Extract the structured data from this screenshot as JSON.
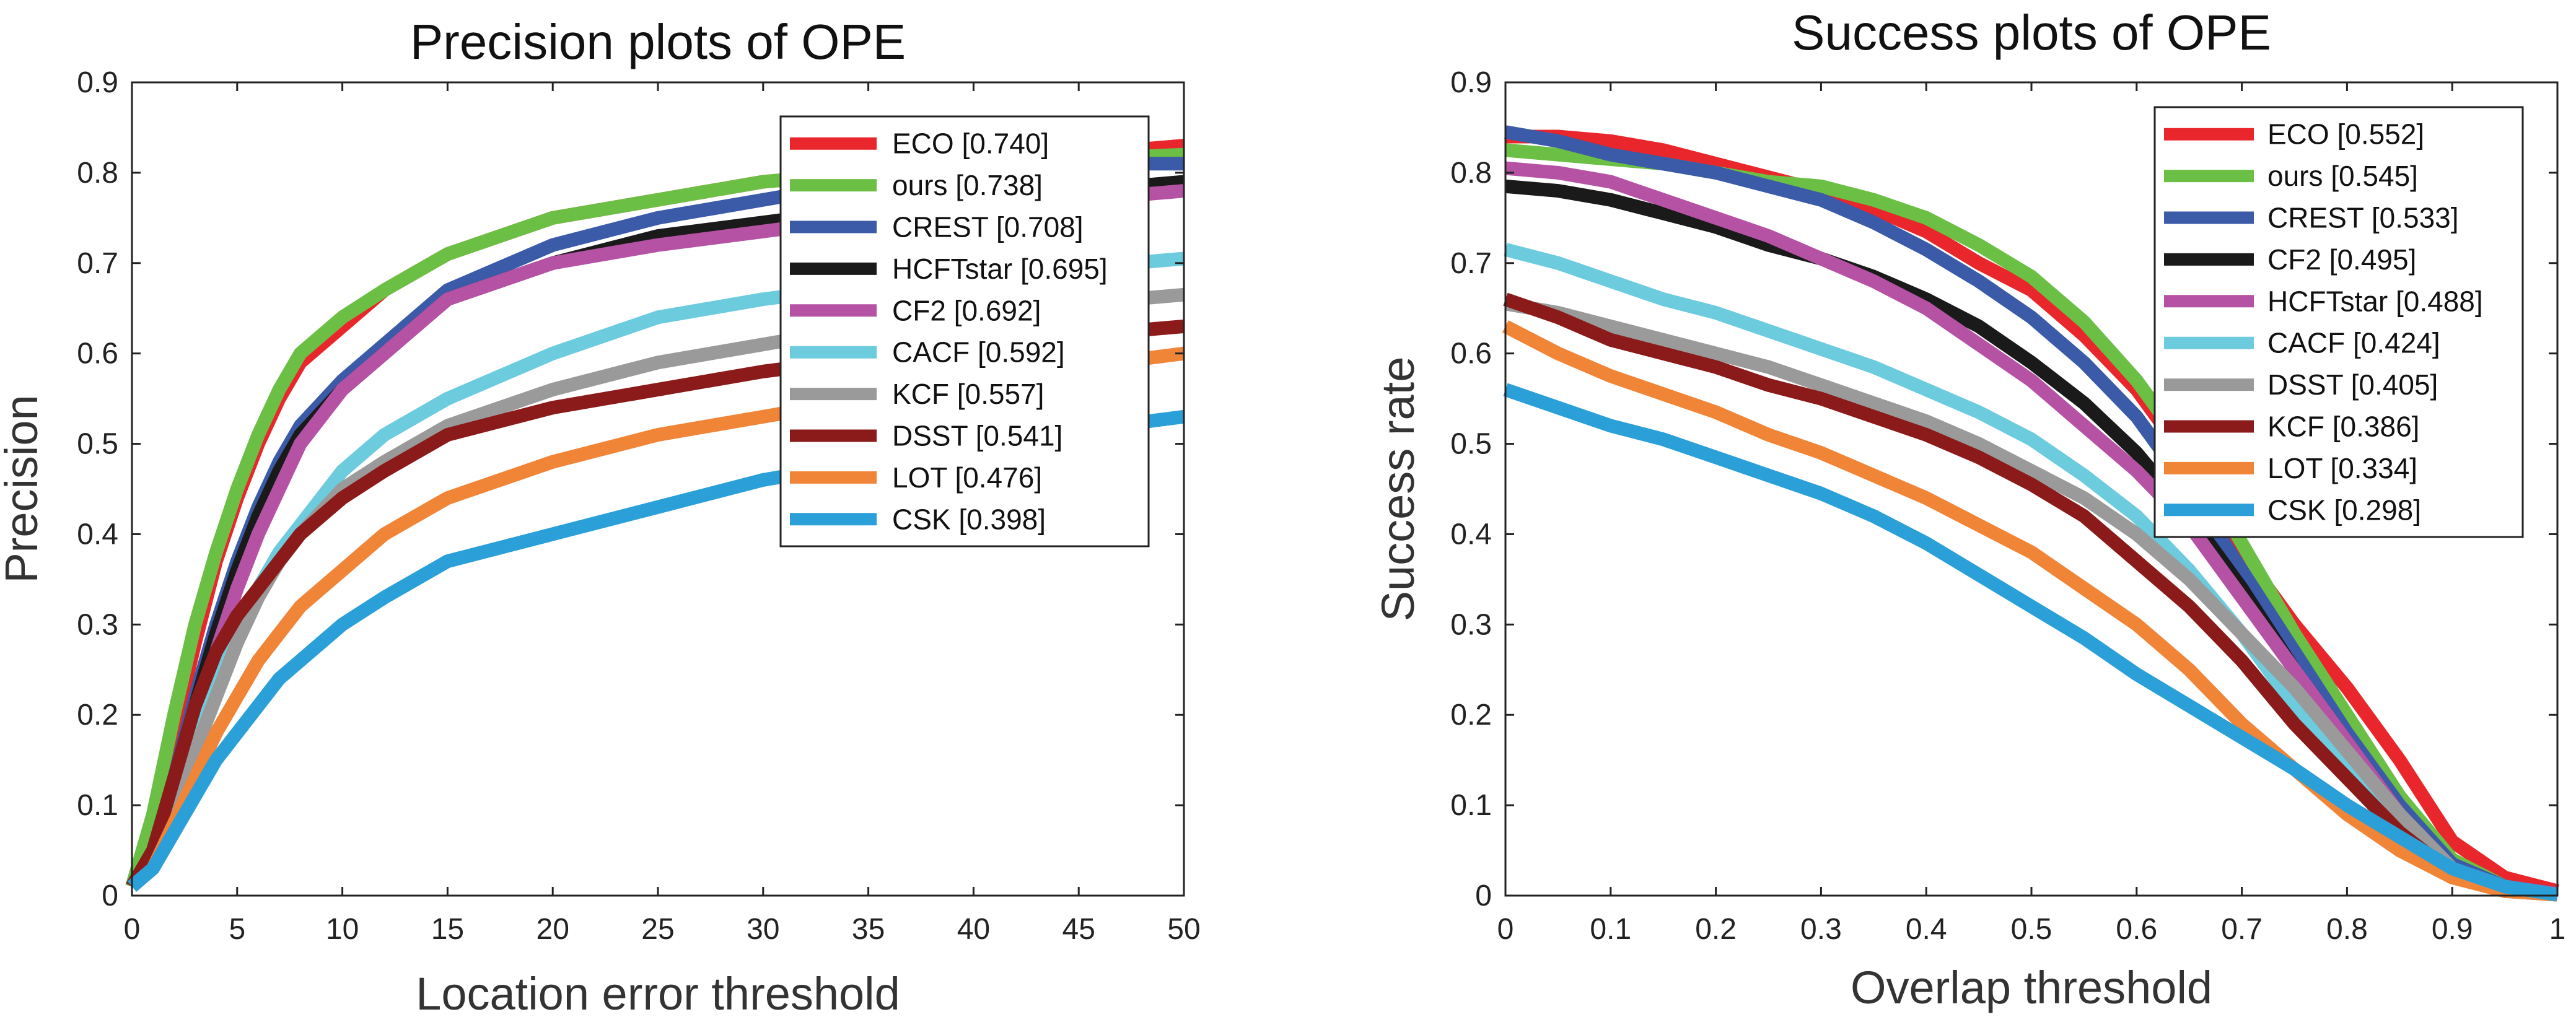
{
  "chart_data": [
    {
      "type": "line",
      "title": "Precision plots of OPE",
      "xlabel": "Location error threshold",
      "ylabel": "Precision",
      "xlim": [
        0,
        50
      ],
      "ylim": [
        0,
        0.9
      ],
      "xticks": [
        0,
        5,
        10,
        15,
        20,
        25,
        30,
        35,
        40,
        45,
        50
      ],
      "yticks": [
        0,
        0.1,
        0.2,
        0.3,
        0.4,
        0.5,
        0.6,
        0.7,
        0.8,
        0.9
      ],
      "xtick_labels": [
        "0",
        "5",
        "10",
        "15",
        "20",
        "25",
        "30",
        "35",
        "40",
        "45",
        "50"
      ],
      "ytick_labels": [
        "0",
        "0.1",
        "0.2",
        "0.3",
        "0.4",
        "0.5",
        "0.6",
        "0.7",
        "0.8",
        "0.9"
      ],
      "grid": false,
      "legend_position": "top-right",
      "x": [
        0,
        1,
        2,
        3,
        4,
        5,
        6,
        7,
        8,
        10,
        12,
        15,
        20,
        25,
        30,
        35,
        40,
        45,
        50
      ],
      "series": [
        {
          "name": "ECO [0.740]",
          "color": "#e8262b",
          "values": [
            0.01,
            0.08,
            0.18,
            0.28,
            0.37,
            0.44,
            0.5,
            0.55,
            0.59,
            0.63,
            0.67,
            0.71,
            0.75,
            0.77,
            0.79,
            0.8,
            0.81,
            0.82,
            0.83
          ]
        },
        {
          "name": "ours [0.738]",
          "color": "#6cbf45",
          "values": [
            0.01,
            0.09,
            0.2,
            0.3,
            0.38,
            0.45,
            0.51,
            0.56,
            0.6,
            0.64,
            0.67,
            0.71,
            0.75,
            0.77,
            0.79,
            0.8,
            0.81,
            0.815,
            0.82
          ]
        },
        {
          "name": "CREST [0.708]",
          "color": "#3b5aa8",
          "values": [
            0.01,
            0.05,
            0.13,
            0.22,
            0.3,
            0.37,
            0.43,
            0.48,
            0.52,
            0.57,
            0.61,
            0.67,
            0.72,
            0.75,
            0.77,
            0.79,
            0.8,
            0.81,
            0.81
          ]
        },
        {
          "name": "HCFTstar [0.695]",
          "color": "#1a1a1a",
          "values": [
            0.01,
            0.05,
            0.12,
            0.21,
            0.29,
            0.36,
            0.42,
            0.47,
            0.51,
            0.56,
            0.6,
            0.66,
            0.7,
            0.73,
            0.745,
            0.76,
            0.77,
            0.78,
            0.79
          ]
        },
        {
          "name": "CF2 [0.692]",
          "color": "#b552a4",
          "values": [
            0.01,
            0.04,
            0.11,
            0.19,
            0.27,
            0.34,
            0.4,
            0.45,
            0.5,
            0.56,
            0.6,
            0.66,
            0.7,
            0.72,
            0.735,
            0.75,
            0.76,
            0.77,
            0.78
          ]
        },
        {
          "name": "CACF [0.592]",
          "color": "#6ccbdd",
          "values": [
            0.01,
            0.04,
            0.1,
            0.17,
            0.23,
            0.29,
            0.34,
            0.38,
            0.41,
            0.47,
            0.51,
            0.55,
            0.6,
            0.64,
            0.66,
            0.675,
            0.685,
            0.695,
            0.705
          ]
        },
        {
          "name": "KCF [0.557]",
          "color": "#9a9a9a",
          "values": [
            0.01,
            0.03,
            0.09,
            0.16,
            0.22,
            0.28,
            0.33,
            0.37,
            0.4,
            0.45,
            0.48,
            0.52,
            0.56,
            0.59,
            0.61,
            0.63,
            0.64,
            0.655,
            0.665
          ]
        },
        {
          "name": "DSST [0.541]",
          "color": "#8b1a1a",
          "values": [
            0.01,
            0.05,
            0.13,
            0.21,
            0.27,
            0.31,
            0.34,
            0.37,
            0.4,
            0.44,
            0.47,
            0.51,
            0.54,
            0.56,
            0.58,
            0.595,
            0.605,
            0.62,
            0.63
          ]
        },
        {
          "name": "LOT [0.476]",
          "color": "#f08437",
          "values": [
            0.01,
            0.03,
            0.08,
            0.13,
            0.18,
            0.22,
            0.26,
            0.29,
            0.32,
            0.36,
            0.4,
            0.44,
            0.48,
            0.51,
            0.53,
            0.55,
            0.57,
            0.585,
            0.6
          ]
        },
        {
          "name": "CSK [0.398]",
          "color": "#2a9fd8",
          "values": [
            0.01,
            0.03,
            0.07,
            0.11,
            0.15,
            0.18,
            0.21,
            0.24,
            0.26,
            0.3,
            0.33,
            0.37,
            0.4,
            0.43,
            0.46,
            0.48,
            0.5,
            0.515,
            0.53
          ]
        }
      ]
    },
    {
      "type": "line",
      "title": "Success plots of OPE",
      "xlabel": "Overlap threshold",
      "ylabel": "Success rate",
      "xlim": [
        0,
        1
      ],
      "ylim": [
        0,
        0.9
      ],
      "xticks": [
        0,
        0.1,
        0.2,
        0.3,
        0.4,
        0.5,
        0.6,
        0.7,
        0.8,
        0.9,
        1
      ],
      "yticks": [
        0,
        0.1,
        0.2,
        0.3,
        0.4,
        0.5,
        0.6,
        0.7,
        0.8,
        0.9
      ],
      "xtick_labels": [
        "0",
        "0.1",
        "0.2",
        "0.3",
        "0.4",
        "0.5",
        "0.6",
        "0.7",
        "0.8",
        "0.9",
        "1"
      ],
      "ytick_labels": [
        "0",
        "0.1",
        "0.2",
        "0.3",
        "0.4",
        "0.5",
        "0.6",
        "0.7",
        "0.8",
        "0.9"
      ],
      "grid": false,
      "legend_position": "top-right",
      "x": [
        0,
        0.05,
        0.1,
        0.15,
        0.2,
        0.25,
        0.3,
        0.35,
        0.4,
        0.45,
        0.5,
        0.55,
        0.6,
        0.65,
        0.7,
        0.75,
        0.8,
        0.85,
        0.9,
        0.95,
        1
      ],
      "series": [
        {
          "name": "ECO [0.552]",
          "color": "#e8262b",
          "values": [
            0.84,
            0.84,
            0.835,
            0.825,
            0.81,
            0.795,
            0.78,
            0.76,
            0.735,
            0.7,
            0.67,
            0.62,
            0.56,
            0.48,
            0.38,
            0.3,
            0.23,
            0.15,
            0.06,
            0.02,
            0.005
          ]
        },
        {
          "name": "ours [0.545]",
          "color": "#6cbf45",
          "values": [
            0.825,
            0.82,
            0.815,
            0.81,
            0.8,
            0.79,
            0.785,
            0.77,
            0.75,
            0.72,
            0.685,
            0.635,
            0.57,
            0.49,
            0.39,
            0.29,
            0.2,
            0.11,
            0.04,
            0.01,
            0.002
          ]
        },
        {
          "name": "CREST [0.533]",
          "color": "#3b5aa8",
          "values": [
            0.845,
            0.835,
            0.82,
            0.81,
            0.8,
            0.785,
            0.77,
            0.745,
            0.715,
            0.68,
            0.64,
            0.59,
            0.53,
            0.45,
            0.36,
            0.27,
            0.18,
            0.1,
            0.035,
            0.01,
            0.002
          ]
        },
        {
          "name": "CF2 [0.495]",
          "color": "#1a1a1a",
          "values": [
            0.785,
            0.78,
            0.77,
            0.755,
            0.74,
            0.72,
            0.705,
            0.685,
            0.66,
            0.63,
            0.59,
            0.545,
            0.49,
            0.42,
            0.34,
            0.25,
            0.17,
            0.09,
            0.03,
            0.01,
            0.002
          ]
        },
        {
          "name": "HCFTstar [0.488]",
          "color": "#b552a4",
          "values": [
            0.805,
            0.8,
            0.79,
            0.77,
            0.75,
            0.73,
            0.705,
            0.68,
            0.65,
            0.61,
            0.57,
            0.52,
            0.47,
            0.41,
            0.33,
            0.25,
            0.17,
            0.09,
            0.03,
            0.01,
            0.002
          ]
        },
        {
          "name": "CACF [0.424]",
          "color": "#6ccbdd",
          "values": [
            0.715,
            0.7,
            0.68,
            0.66,
            0.645,
            0.625,
            0.605,
            0.585,
            0.56,
            0.535,
            0.505,
            0.465,
            0.42,
            0.36,
            0.29,
            0.21,
            0.14,
            0.07,
            0.025,
            0.005,
            0.001
          ]
        },
        {
          "name": "DSST [0.405]",
          "color": "#9a9a9a",
          "values": [
            0.655,
            0.645,
            0.63,
            0.615,
            0.6,
            0.585,
            0.565,
            0.545,
            0.525,
            0.5,
            0.47,
            0.44,
            0.4,
            0.35,
            0.29,
            0.23,
            0.16,
            0.09,
            0.03,
            0.01,
            0.001
          ]
        },
        {
          "name": "KCF [0.386]",
          "color": "#8b1a1a",
          "values": [
            0.66,
            0.64,
            0.615,
            0.6,
            0.585,
            0.565,
            0.55,
            0.53,
            0.51,
            0.485,
            0.455,
            0.42,
            0.37,
            0.32,
            0.26,
            0.19,
            0.13,
            0.07,
            0.025,
            0.005,
            0.001
          ]
        },
        {
          "name": "LOT [0.334]",
          "color": "#f08437",
          "values": [
            0.63,
            0.6,
            0.575,
            0.555,
            0.535,
            0.51,
            0.49,
            0.465,
            0.44,
            0.41,
            0.38,
            0.34,
            0.3,
            0.25,
            0.19,
            0.14,
            0.09,
            0.05,
            0.02,
            0.005,
            0.001
          ]
        },
        {
          "name": "CSK [0.298]",
          "color": "#2a9fd8",
          "values": [
            0.56,
            0.54,
            0.52,
            0.505,
            0.485,
            0.465,
            0.445,
            0.42,
            0.39,
            0.355,
            0.32,
            0.285,
            0.245,
            0.21,
            0.175,
            0.14,
            0.1,
            0.065,
            0.03,
            0.01,
            0.001
          ]
        }
      ]
    }
  ]
}
